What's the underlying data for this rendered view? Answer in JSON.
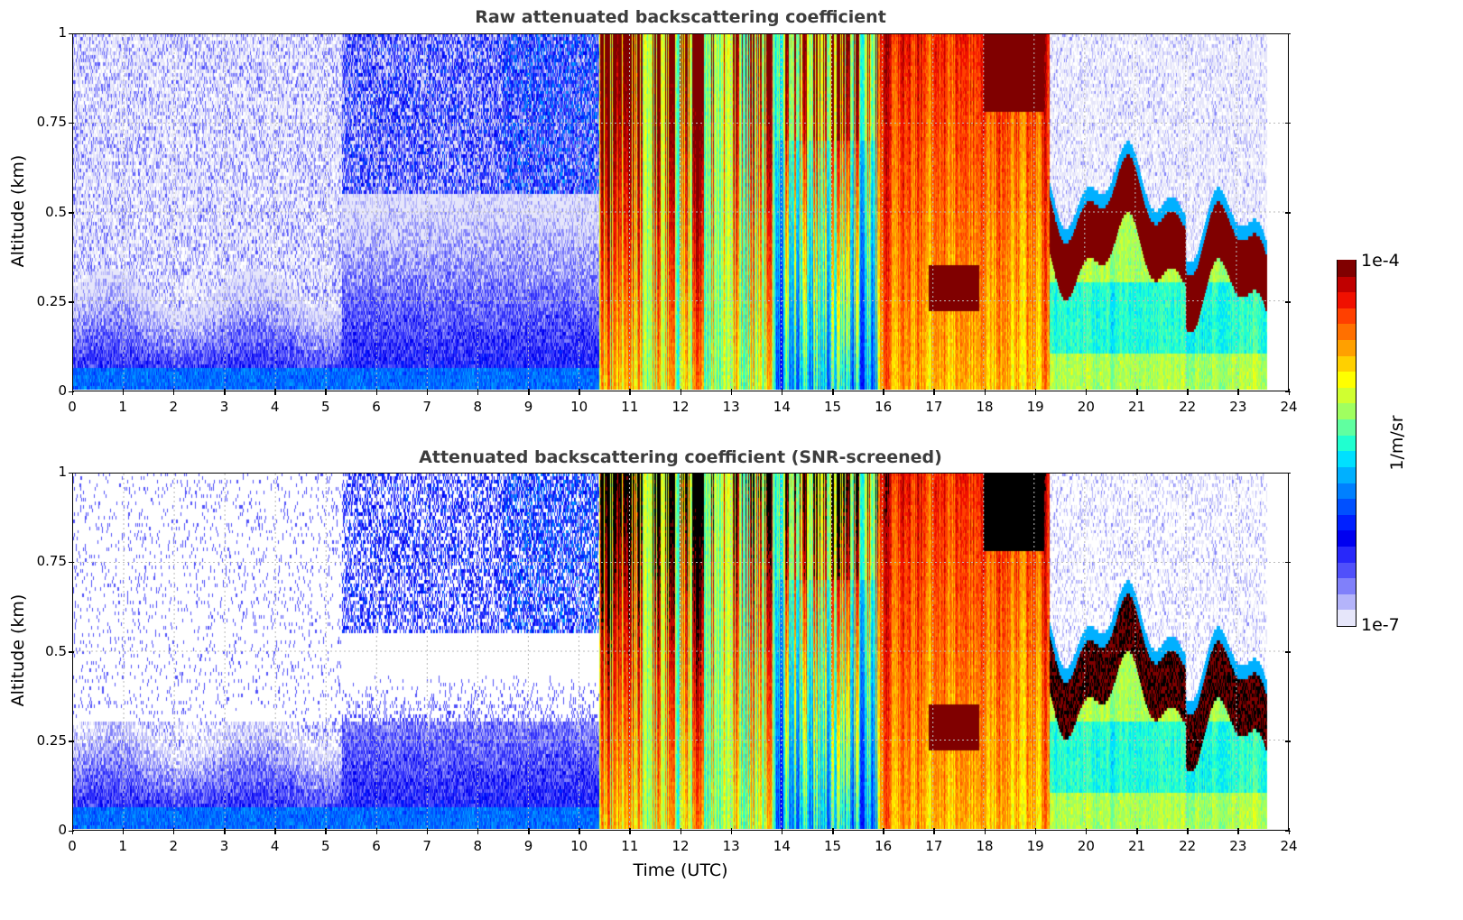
{
  "chart_data": [
    {
      "type": "heatmap",
      "title": "Raw attenuated backscattering coefficient",
      "xlabel": "",
      "ylabel": "Altitude (km)",
      "xlim": [
        0,
        24
      ],
      "ylim": [
        0,
        1
      ],
      "xticks": [
        "0",
        "1",
        "2",
        "3",
        "4",
        "5",
        "6",
        "7",
        "8",
        "9",
        "10",
        "11",
        "12",
        "13",
        "14",
        "15",
        "16",
        "17",
        "18",
        "19",
        "20",
        "21",
        "22",
        "23",
        "24"
      ],
      "yticks": [
        "0",
        "0.25",
        "0.5",
        "0.75",
        "1"
      ],
      "ytick_values": [
        0,
        0.25,
        0.5,
        0.75,
        1
      ],
      "grid": true,
      "screened": false,
      "data_end_time": 23.6,
      "regimes": [
        {
          "t0": 0,
          "t1": 5.3,
          "kind": "clear-noisy-low"
        },
        {
          "t0": 5.3,
          "t1": 10.4,
          "kind": "clear-noisy"
        },
        {
          "t0": 10.4,
          "t1": 15.9,
          "kind": "precip-streaks"
        },
        {
          "t0": 15.9,
          "t1": 19.3,
          "kind": "dense-streaks"
        },
        {
          "t0": 19.3,
          "t1": 23.6,
          "kind": "cloud-layer"
        }
      ]
    },
    {
      "type": "heatmap",
      "title": "Attenuated backscattering coefficient (SNR-screened)",
      "xlabel": "Time (UTC)",
      "ylabel": "Altitude (km)",
      "xlim": [
        0,
        24
      ],
      "ylim": [
        0,
        1
      ],
      "xticks": [
        "0",
        "1",
        "2",
        "3",
        "4",
        "5",
        "6",
        "7",
        "8",
        "9",
        "10",
        "11",
        "12",
        "13",
        "14",
        "15",
        "16",
        "17",
        "18",
        "19",
        "20",
        "21",
        "22",
        "23",
        "24"
      ],
      "yticks": [
        "0",
        "0.25",
        "0.5",
        "0.75",
        "1"
      ],
      "ytick_values": [
        0,
        0.25,
        0.5,
        0.75,
        1
      ],
      "grid": true,
      "screened": true,
      "data_end_time": 23.6,
      "regimes": [
        {
          "t0": 0,
          "t1": 5.3,
          "kind": "clear-noisy-low"
        },
        {
          "t0": 5.3,
          "t1": 10.4,
          "kind": "clear-noisy"
        },
        {
          "t0": 10.4,
          "t1": 15.9,
          "kind": "precip-streaks"
        },
        {
          "t0": 15.9,
          "t1": 19.3,
          "kind": "dense-streaks"
        },
        {
          "t0": 19.3,
          "t1": 23.6,
          "kind": "cloud-layer"
        }
      ]
    }
  ],
  "colorbar": {
    "max_label": "1e-4",
    "min_label": "1e-7",
    "unit": "1/m/sr",
    "range": [
      1e-07,
      0.0001
    ],
    "scale": "log",
    "colors": [
      "#e6e6fa",
      "#b4b4fa",
      "#8080fa",
      "#5050fa",
      "#2828fa",
      "#0000f0",
      "#0020ff",
      "#0050ff",
      "#0080ff",
      "#00b0ff",
      "#00e0ff",
      "#20ffd0",
      "#60ffa0",
      "#a0ff60",
      "#d0ff30",
      "#ffff00",
      "#ffd000",
      "#ffa000",
      "#ff7000",
      "#ff4000",
      "#f01000",
      "#c00000",
      "#800000"
    ],
    "saturated_color": "#000000"
  }
}
